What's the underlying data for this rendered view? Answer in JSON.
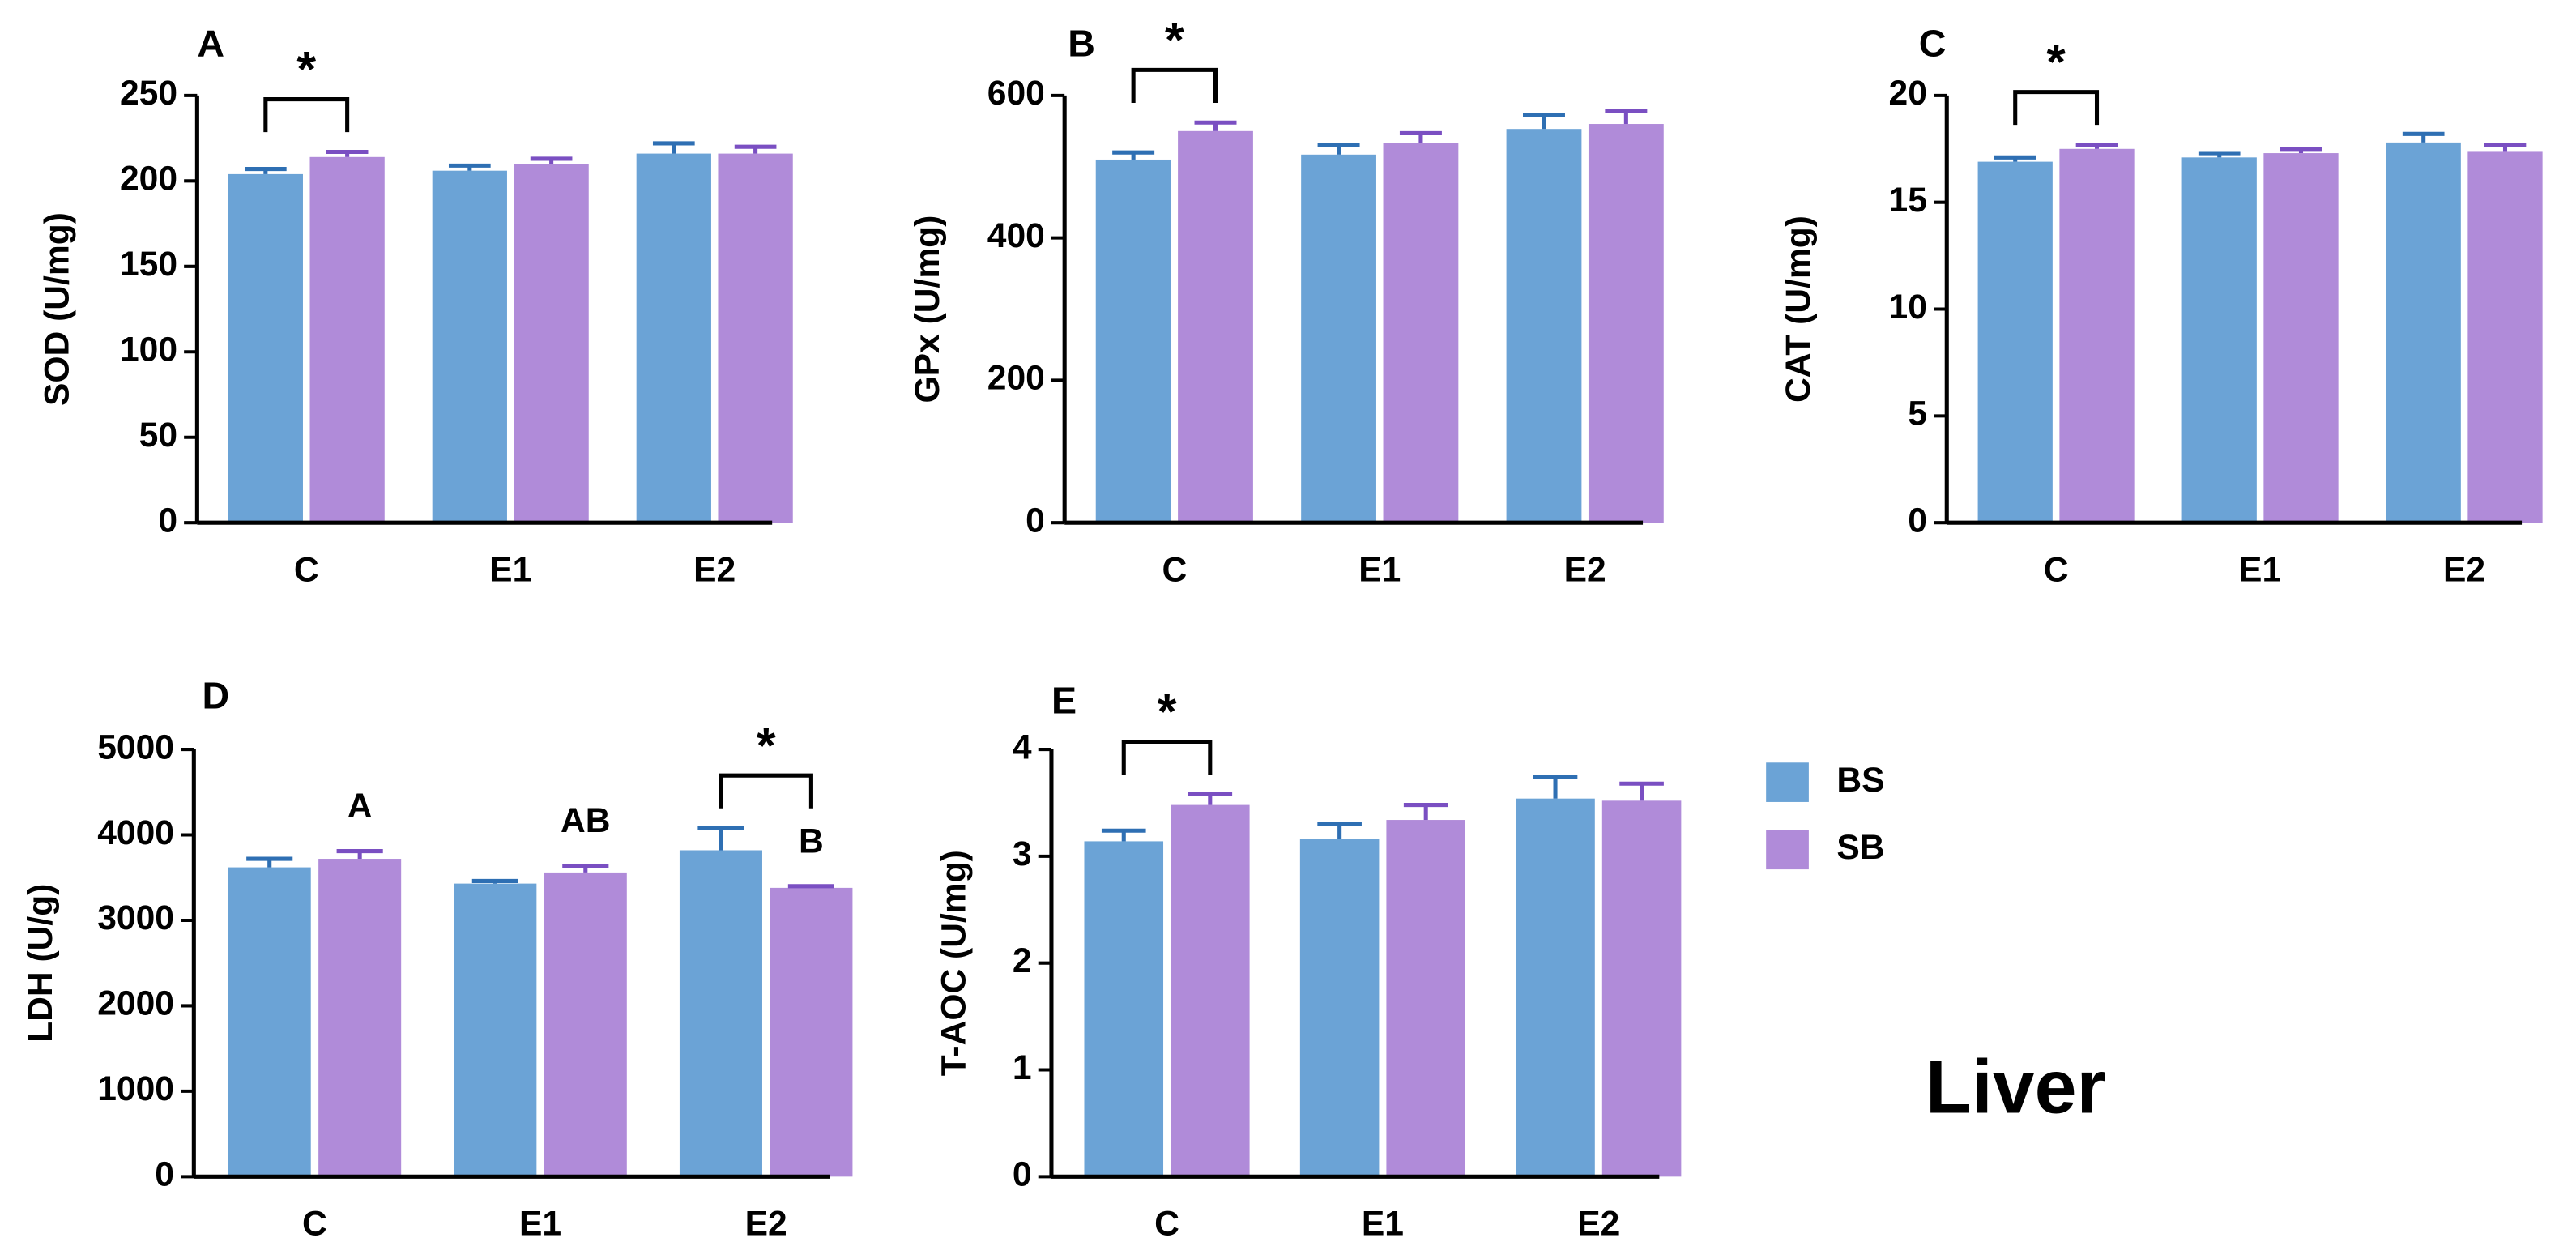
{
  "chart_data": [
    {
      "type": "bar",
      "panel": "A",
      "ylabel": "SOD (U/mg)",
      "categories": [
        "C",
        "E1",
        "E2"
      ],
      "series": [
        {
          "name": "BS",
          "color": "#6ba3d6",
          "error_color": "#2e6fb3",
          "values": [
            204,
            206,
            216
          ],
          "errors": [
            3,
            3,
            6
          ]
        },
        {
          "name": "SB",
          "color": "#b08bd9",
          "error_color": "#7a4fc2",
          "values": [
            214,
            210,
            216
          ],
          "errors": [
            3,
            3,
            4
          ]
        }
      ],
      "ylim": [
        0,
        250
      ],
      "yticks": [
        0,
        50,
        100,
        150,
        200,
        250
      ],
      "annotations": [
        {
          "text": "*",
          "category": "C"
        }
      ]
    },
    {
      "type": "bar",
      "panel": "B",
      "ylabel": "GPx (U/mg)",
      "categories": [
        "C",
        "E1",
        "E2"
      ],
      "series": [
        {
          "name": "BS",
          "color": "#6ba3d6",
          "error_color": "#2e6fb3",
          "values": [
            510,
            517,
            553
          ],
          "errors": [
            10,
            14,
            20
          ]
        },
        {
          "name": "SB",
          "color": "#b08bd9",
          "error_color": "#7a4fc2",
          "values": [
            550,
            533,
            560
          ],
          "errors": [
            12,
            14,
            18
          ]
        }
      ],
      "ylim": [
        0,
        600
      ],
      "yticks": [
        0,
        200,
        400,
        600
      ],
      "annotations": [
        {
          "text": "*",
          "category": "C"
        }
      ]
    },
    {
      "type": "bar",
      "panel": "C",
      "ylabel": "CAT  (U/mg)",
      "categories": [
        "C",
        "E1",
        "E2"
      ],
      "series": [
        {
          "name": "BS",
          "color": "#6ba3d6",
          "error_color": "#2e6fb3",
          "values": [
            16.9,
            17.1,
            17.8
          ],
          "errors": [
            0.2,
            0.2,
            0.4
          ]
        },
        {
          "name": "SB",
          "color": "#b08bd9",
          "error_color": "#7a4fc2",
          "values": [
            17.5,
            17.3,
            17.4
          ],
          "errors": [
            0.2,
            0.2,
            0.3
          ]
        }
      ],
      "ylim": [
        0,
        20
      ],
      "yticks": [
        0,
        5,
        10,
        15,
        20
      ],
      "annotations": [
        {
          "text": "*",
          "category": "C"
        }
      ]
    },
    {
      "type": "bar",
      "panel": "D",
      "ylabel": "LDH  (U/g)",
      "categories": [
        "C",
        "E1",
        "E2"
      ],
      "series": [
        {
          "name": "BS",
          "color": "#6ba3d6",
          "error_color": "#2e6fb3",
          "values": [
            3620,
            3430,
            3820
          ],
          "errors": [
            100,
            30,
            260
          ]
        },
        {
          "name": "SB",
          "color": "#b08bd9",
          "error_color": "#7a4fc2",
          "values": [
            3720,
            3560,
            3380
          ],
          "errors": [
            90,
            80,
            20
          ],
          "letters": [
            "A",
            "AB",
            "B"
          ]
        }
      ],
      "ylim": [
        0,
        5000
      ],
      "yticks": [
        0,
        1000,
        2000,
        3000,
        4000,
        5000
      ],
      "annotations": [
        {
          "text": "*",
          "category": "E2"
        }
      ]
    },
    {
      "type": "bar",
      "panel": "E",
      "ylabel": "T-AOC (U/mg)",
      "categories": [
        "C",
        "E1",
        "E2"
      ],
      "series": [
        {
          "name": "BS",
          "color": "#6ba3d6",
          "error_color": "#2e6fb3",
          "values": [
            3.14,
            3.16,
            3.54
          ],
          "errors": [
            0.1,
            0.14,
            0.2
          ]
        },
        {
          "name": "SB",
          "color": "#b08bd9",
          "error_color": "#7a4fc2",
          "values": [
            3.48,
            3.34,
            3.52
          ],
          "errors": [
            0.1,
            0.14,
            0.16
          ]
        }
      ],
      "ylim": [
        0,
        4
      ],
      "yticks": [
        0,
        1,
        2,
        3,
        4
      ],
      "annotations": [
        {
          "text": "*",
          "category": "C"
        }
      ]
    }
  ],
  "caption": "Liver"
}
